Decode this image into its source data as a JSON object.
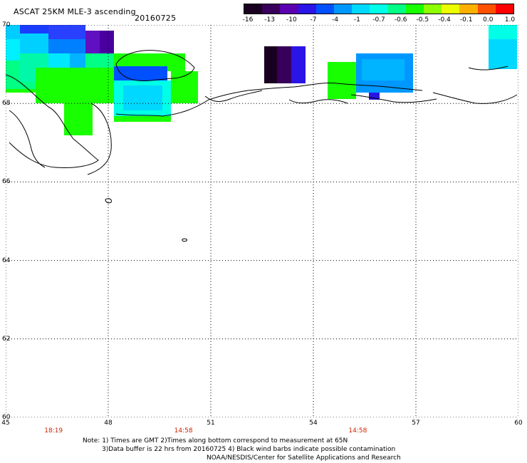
{
  "header": {
    "title": "ASCAT 25KM MLE-3 ascending",
    "date": "20160725"
  },
  "colorbar": {
    "ticks": [
      "-16",
      "-13",
      "-10",
      "-7",
      "-4",
      "-1",
      "-0.7",
      "-0.6",
      "-0.5",
      "-0.4",
      "-0.1",
      "0.0",
      "1.0"
    ],
    "colors": [
      "#1a0020",
      "#38005a",
      "#5a00b0",
      "#2a14e6",
      "#0050ff",
      "#0098ff",
      "#00d8ff",
      "#00ffe6",
      "#00ff84",
      "#18ff00",
      "#8cff00",
      "#ecff00",
      "#ffb000",
      "#ff5000",
      "#ff0000"
    ]
  },
  "map": {
    "lat_labels": [
      "70",
      "68",
      "66",
      "64",
      "62",
      "60"
    ],
    "lon_labels": [
      "45",
      "48",
      "51",
      "54",
      "57",
      "60"
    ],
    "time_labels": [
      {
        "text": "18:19",
        "lon": 46.4
      },
      {
        "text": "14:58",
        "lon": 50.2
      },
      {
        "text": "14:58",
        "lon": 55.3
      }
    ]
  },
  "notes": {
    "line1": "Note: 1) Times are GMT 2)Times along bottom correspond to measurement at 65N",
    "line2": "3)Data buffer is 22 hrs from 20160725 4) Black wind barbs indicate possible contamination",
    "line3": "NOAA/NESDIS/Center for Satellite Applications and Research"
  }
}
